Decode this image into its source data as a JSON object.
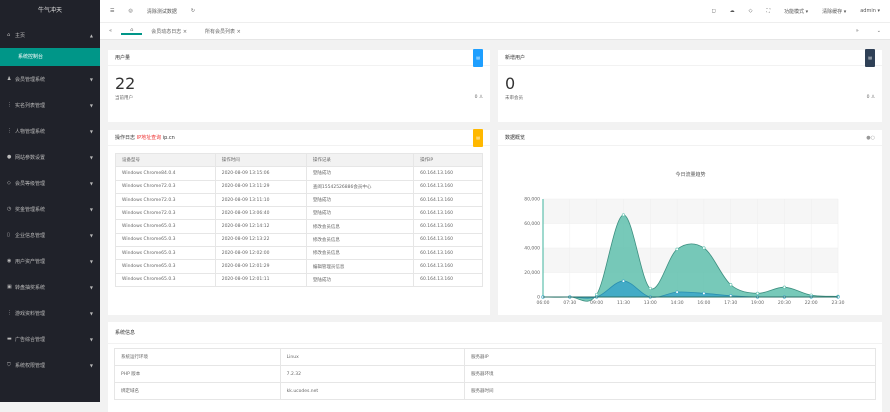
{
  "sidebar": {
    "logo": "牛气冲天",
    "items": [
      {
        "label": "主页",
        "icon": "home-icon",
        "open": true
      },
      {
        "label": "会员管理系统",
        "icon": "users-icon"
      },
      {
        "label": "实名列表管理",
        "icon": "list-icon"
      },
      {
        "label": "人物管理系统",
        "icon": "list-icon"
      },
      {
        "label": "网站参数设置",
        "icon": "gear-icon"
      },
      {
        "label": "会员等级管理",
        "icon": "diamond-icon"
      },
      {
        "label": "奖金管理系统",
        "icon": "clock-icon"
      },
      {
        "label": "企业信息管理",
        "icon": "doc-icon"
      },
      {
        "label": "用户资产管理",
        "icon": "target-icon"
      },
      {
        "label": "转盘抽奖系统",
        "icon": "image-icon"
      },
      {
        "label": "游戏资料管理",
        "icon": "list-icon"
      },
      {
        "label": "广告综合管理",
        "icon": "card-icon"
      },
      {
        "label": "系统权限管理",
        "icon": "shield-icon"
      }
    ],
    "active_sub": "系统控制台"
  },
  "header": {
    "clear_test": "清除测试数据",
    "items": [
      "功能模式",
      "清除缓存",
      "admin"
    ]
  },
  "tabs": [
    "会员动态日志",
    "所有会员列表"
  ],
  "users": {
    "title": "用户量",
    "value": "22",
    "label": "当前用户",
    "count": "0",
    "badge_color": "#1E9FFF"
  },
  "pending": {
    "title": "新增用户",
    "value": "0",
    "label": "未审会员",
    "count": "0",
    "badge_color": "#2F4056"
  },
  "log": {
    "title": "操作日志",
    "ip_link": "IP地址查询",
    "ip_suffix": "ip.cn",
    "badge_color": "#FFB800",
    "columns": [
      "设备型号",
      "操作时间",
      "操作记录",
      "操作IP"
    ],
    "rows": [
      [
        "Windows Chrome84.0.4",
        "2020-08-09 13:15:06",
        "登陆成功",
        "60.164.13.160"
      ],
      [
        "Windows Chrome72.0.3",
        "2020-08-09 13:11:29",
        "查阅15542526886会员中心",
        "60.164.13.160"
      ],
      [
        "Windows Chrome72.0.3",
        "2020-08-09 13:11:10",
        "登陆成功",
        "60.164.13.160"
      ],
      [
        "Windows Chrome72.0.3",
        "2020-08-09 13:06:40",
        "登陆成功",
        "60.164.13.160"
      ],
      [
        "Windows Chrome65.0.3",
        "2020-08-09 12:14:12",
        "修改会员信息",
        "60.164.13.160"
      ],
      [
        "Windows Chrome65.0.3",
        "2020-08-09 12:13:22",
        "修改会员信息",
        "60.164.13.160"
      ],
      [
        "Windows Chrome65.0.3",
        "2020-08-09 12:02:00",
        "修改会员信息",
        "60.164.13.160"
      ],
      [
        "Windows Chrome65.0.3",
        "2020-08-09 12:01:29",
        "编辑管理员信息",
        "60.164.13.160"
      ],
      [
        "Windows Chrome65.0.3",
        "2020-08-09 12:01:11",
        "登陆成功",
        "60.164.13.160"
      ]
    ]
  },
  "overview": {
    "title": "数据概览"
  },
  "chart_data": {
    "type": "area",
    "title": "今日流量趋势",
    "categories": [
      "06:00",
      "07:30",
      "09:00",
      "11:30",
      "13:00",
      "14:30",
      "16:00",
      "17:30",
      "19:00",
      "20:30",
      "22:00",
      "23:30"
    ],
    "series": [
      {
        "values": [
          0,
          0,
          2000,
          67000,
          7000,
          39000,
          40000,
          10000,
          3000,
          8000,
          1500,
          500
        ],
        "color": "#5fbfad"
      },
      {
        "values": [
          0,
          0,
          0,
          13000,
          0,
          4000,
          3000,
          1000,
          0,
          0,
          0,
          0
        ],
        "color": "#3aa6c8"
      }
    ],
    "yticks": [
      "0",
      "20,000",
      "40,000",
      "60,000",
      "80,000"
    ],
    "ylim": [
      0,
      80000
    ],
    "grid": true
  },
  "sysinfo": {
    "title": "系统信息",
    "rows": [
      [
        "系统运行环境",
        "Linux",
        "服务器IP"
      ],
      [
        "PHP 版本",
        "7.2.32",
        "服务器环境"
      ],
      [
        "绑定域名",
        "kk.ucodes.net",
        "服务器时间"
      ]
    ]
  }
}
